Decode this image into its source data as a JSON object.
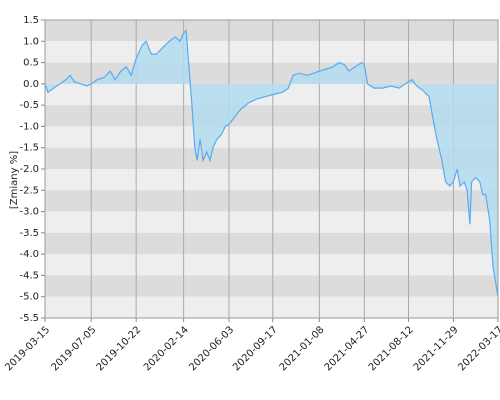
{
  "chart_data": {
    "type": "area",
    "y_label": "[Zmiany %]",
    "color": "#5aaaf0",
    "fill": "#b3dcef",
    "x": [
      "2019-03-15",
      "2019-03-22",
      "2019-04-05",
      "2019-04-20",
      "2019-05-05",
      "2019-05-15",
      "2019-05-25",
      "2019-06-10",
      "2019-06-25",
      "2019-07-05",
      "2019-07-20",
      "2019-08-05",
      "2019-08-20",
      "2019-09-01",
      "2019-09-15",
      "2019-09-28",
      "2019-10-10",
      "2019-10-22",
      "2019-11-05",
      "2019-11-15",
      "2019-11-28",
      "2019-12-10",
      "2019-12-25",
      "2020-01-10",
      "2020-01-25",
      "2020-02-05",
      "2020-02-14",
      "2020-02-20",
      "2020-02-26",
      "2020-03-05",
      "2020-03-12",
      "2020-03-18",
      "2020-03-25",
      "2020-04-01",
      "2020-04-10",
      "2020-04-18",
      "2020-04-25",
      "2020-05-05",
      "2020-05-15",
      "2020-05-25",
      "2020-06-03",
      "2020-06-15",
      "2020-07-01",
      "2020-07-20",
      "2020-08-10",
      "2020-09-01",
      "2020-09-17",
      "2020-10-10",
      "2020-10-25",
      "2020-11-05",
      "2020-11-20",
      "2020-12-10",
      "2021-01-08",
      "2021-01-25",
      "2021-02-10",
      "2021-02-25",
      "2021-03-10",
      "2021-03-20",
      "2021-04-05",
      "2021-04-20",
      "2021-04-27",
      "2021-05-05",
      "2021-05-20",
      "2021-06-10",
      "2021-07-01",
      "2021-07-20",
      "2021-08-12",
      "2021-08-20",
      "2021-09-01",
      "2021-09-15",
      "2021-10-01",
      "2021-10-10",
      "2021-10-20",
      "2021-11-01",
      "2021-11-10",
      "2021-11-20",
      "2021-11-29",
      "2021-12-08",
      "2021-12-15",
      "2021-12-25",
      "2022-01-01",
      "2022-01-08",
      "2022-01-12",
      "2022-01-22",
      "2022-02-01",
      "2022-02-08",
      "2022-02-15",
      "2022-02-25",
      "2022-03-05",
      "2022-03-17"
    ],
    "values": [
      0.0,
      -0.2,
      -0.1,
      0.0,
      0.1,
      0.2,
      0.05,
      0.0,
      -0.05,
      0.0,
      0.1,
      0.15,
      0.3,
      0.1,
      0.3,
      0.4,
      0.2,
      0.6,
      0.9,
      1.0,
      0.7,
      0.7,
      0.85,
      1.0,
      1.1,
      1.0,
      1.2,
      1.25,
      0.5,
      -0.5,
      -1.5,
      -1.8,
      -1.3,
      -1.8,
      -1.6,
      -1.8,
      -1.5,
      -1.3,
      -1.2,
      -1.0,
      -0.95,
      -0.8,
      -0.6,
      -0.45,
      -0.35,
      -0.3,
      -0.25,
      -0.2,
      -0.1,
      0.2,
      0.25,
      0.2,
      0.3,
      0.35,
      0.4,
      0.5,
      0.45,
      0.3,
      0.4,
      0.5,
      0.45,
      0.0,
      -0.1,
      -0.1,
      -0.05,
      -0.1,
      0.05,
      0.1,
      -0.05,
      -0.15,
      -0.3,
      -0.8,
      -1.3,
      -1.8,
      -2.3,
      -2.4,
      -2.3,
      -2.0,
      -2.4,
      -2.3,
      -2.5,
      -3.3,
      -2.3,
      -2.2,
      -2.3,
      -2.6,
      -2.6,
      -3.2,
      -4.3,
      -5.0
    ],
    "xlim": [
      "2019-03-15",
      "2022-03-17"
    ],
    "xticks": [
      "2019-03-15",
      "2019-07-05",
      "2019-10-22",
      "2020-02-14",
      "2020-06-03",
      "2020-09-17",
      "2021-01-08",
      "2021-04-27",
      "2021-08-12",
      "2021-11-29",
      "2022-03-17"
    ],
    "ylim": [
      -5.5,
      1.5
    ],
    "yticks": [
      1.5,
      {
        "value": 1,
        "label": "1.0"
      },
      0.5,
      {
        "value": 0,
        "label": "0.0"
      },
      -0.5,
      {
        "value": -1,
        "label": "-1.0"
      },
      -1.5,
      {
        "value": -2,
        "label": "-2.0"
      },
      -2.5,
      {
        "value": -3,
        "label": "-3.0"
      },
      -3.5,
      {
        "value": -4,
        "label": "-4.0"
      },
      -4.5,
      {
        "value": -5,
        "label": "-5.0"
      },
      -5.5
    ],
    "grid": true
  }
}
